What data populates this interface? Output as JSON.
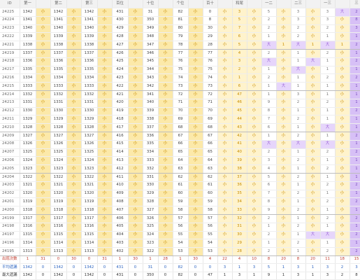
{
  "headers": [
    "ID",
    "第一",
    "",
    "第二",
    "",
    "第三",
    "",
    "百位",
    "",
    "十位",
    "",
    "个位",
    "",
    "百十",
    "",
    "和尾",
    "",
    "一二",
    "",
    "二三",
    "",
    "一三",
    "",
    "三"
  ],
  "rows": [
    {
      "id": "24225",
      "d": [
        "1342",
        "小",
        "1342",
        "小",
        "1342",
        "小",
        "431",
        "小",
        "31",
        "小",
        "82",
        "小",
        "0",
        "小",
        "3",
        "小",
        "5",
        "小",
        "3",
        "小",
        "3",
        "大",
        "2",
        "3"
      ]
    },
    {
      "id": "24224",
      "d": [
        "1341",
        "小",
        "1341",
        "小",
        "1341",
        "小",
        "430",
        "小",
        "350",
        "小",
        "81",
        "小",
        "8",
        "小",
        "5",
        "小",
        "2",
        "小",
        "3",
        "小",
        "3",
        "小",
        "8",
        "8"
      ]
    },
    {
      "id": "24223",
      "d": [
        "1340",
        "小",
        "1340",
        "小",
        "1340",
        "小",
        "429",
        "小",
        "349",
        "小",
        "80",
        "小",
        "30",
        "小",
        "7",
        "小",
        "2",
        "小",
        "2",
        "小",
        "2",
        "小",
        "3",
        "2"
      ]
    },
    {
      "id": "24222",
      "d": [
        "1339",
        "小",
        "1339",
        "小",
        "1339",
        "小",
        "428",
        "小",
        "348",
        "小",
        "79",
        "小",
        "29",
        "小",
        "6",
        "小",
        "1",
        "小",
        "2",
        "小",
        "1",
        "小",
        "1",
        "1"
      ]
    },
    {
      "id": "24221",
      "d": [
        "1338",
        "小",
        "1338",
        "小",
        "1338",
        "小",
        "427",
        "小",
        "347",
        "小",
        "78",
        "小",
        "28",
        "小",
        "5",
        "小",
        "大",
        "1",
        "大",
        "1",
        "大",
        "1",
        "2",
        "7"
      ]
    },
    {
      "id": "24219",
      "d": [
        "1337",
        "小",
        "1337",
        "小",
        "1337",
        "小",
        "426",
        "小",
        "346",
        "小",
        "77",
        "小",
        "77",
        "小",
        "4",
        "小",
        "2",
        "小",
        "1",
        "小",
        "2",
        "小",
        "1",
        "8"
      ]
    },
    {
      "id": "24218",
      "d": [
        "1336",
        "小",
        "1336",
        "小",
        "1336",
        "小",
        "425",
        "小",
        "345",
        "小",
        "76",
        "小",
        "76",
        "小",
        "3",
        "小",
        "大",
        "小",
        "1",
        "大",
        "1",
        "小",
        "2",
        "5"
      ]
    },
    {
      "id": "24217",
      "d": [
        "1335",
        "小",
        "1335",
        "小",
        "1335",
        "小",
        "424",
        "小",
        "344",
        "小",
        "75",
        "小",
        "75",
        "小",
        "2",
        "小",
        "1",
        "小",
        "大",
        "小",
        "1",
        "小",
        "1",
        "1"
      ]
    },
    {
      "id": "24216",
      "d": [
        "1334",
        "小",
        "1334",
        "小",
        "1334",
        "小",
        "423",
        "小",
        "343",
        "小",
        "74",
        "小",
        "74",
        "小",
        "1",
        "小",
        "2",
        "小",
        "1",
        "小",
        "2",
        "小",
        "2",
        "2"
      ]
    },
    {
      "id": "24215",
      "d": [
        "1333",
        "小",
        "1333",
        "小",
        "1333",
        "小",
        "422",
        "小",
        "342",
        "小",
        "73",
        "小",
        "73",
        "小",
        "6",
        "小",
        "1",
        "大",
        "1",
        "小",
        "1",
        "小",
        "1",
        "1"
      ]
    },
    {
      "id": "24214",
      "d": [
        "1332",
        "小",
        "1332",
        "小",
        "1332",
        "小",
        "421",
        "小",
        "341",
        "小",
        "72",
        "小",
        "72",
        "小",
        "47",
        "小",
        "1",
        "小",
        "3",
        "小",
        "1",
        "小",
        "1",
        "1"
      ]
    },
    {
      "id": "24213",
      "d": [
        "1331",
        "小",
        "1331",
        "小",
        "1331",
        "小",
        "420",
        "小",
        "340",
        "小",
        "71",
        "小",
        "71",
        "小",
        "46",
        "小",
        "9",
        "小",
        "2",
        "小",
        "2",
        "小",
        "1",
        "8"
      ]
    },
    {
      "id": "24212",
      "d": [
        "1330",
        "小",
        "1330",
        "小",
        "1330",
        "小",
        "419",
        "小",
        "339",
        "小",
        "70",
        "小",
        "70",
        "小",
        "45",
        "小",
        "8",
        "小",
        "1",
        "小",
        "1",
        "小",
        "2",
        "2"
      ]
    },
    {
      "id": "24211",
      "d": [
        "1329",
        "小",
        "1329",
        "小",
        "1329",
        "小",
        "418",
        "小",
        "338",
        "小",
        "69",
        "小",
        "69",
        "小",
        "44",
        "小",
        "7",
        "小",
        "2",
        "小",
        "1",
        "小",
        "1",
        "1"
      ]
    },
    {
      "id": "24210",
      "d": [
        "1328",
        "小",
        "1328",
        "小",
        "1328",
        "小",
        "417",
        "小",
        "337",
        "小",
        "68",
        "小",
        "68",
        "小",
        "43",
        "小",
        "6",
        "小",
        "1",
        "小",
        "大",
        "小",
        "1",
        "1"
      ]
    },
    {
      "id": "24209",
      "d": [
        "1327",
        "小",
        "1327",
        "小",
        "1327",
        "小",
        "416",
        "小",
        "336",
        "小",
        "67",
        "小",
        "67",
        "小",
        "42",
        "小",
        "1",
        "小",
        "2",
        "小",
        "1",
        "小",
        "2",
        "7"
      ]
    },
    {
      "id": "24208",
      "d": [
        "1326",
        "小",
        "1326",
        "小",
        "1326",
        "小",
        "415",
        "小",
        "335",
        "小",
        "66",
        "小",
        "66",
        "小",
        "41",
        "小",
        "大",
        "小",
        "大",
        "小",
        "大",
        "小",
        "1",
        "1"
      ]
    },
    {
      "id": "24207",
      "d": [
        "1325",
        "小",
        "1325",
        "小",
        "1325",
        "小",
        "414",
        "小",
        "334",
        "小",
        "65",
        "小",
        "65",
        "小",
        "40",
        "小",
        "2",
        "小",
        "1",
        "小",
        "2",
        "小",
        "2",
        "3"
      ]
    },
    {
      "id": "24206",
      "d": [
        "1324",
        "小",
        "1324",
        "小",
        "1324",
        "小",
        "413",
        "小",
        "333",
        "小",
        "64",
        "小",
        "64",
        "小",
        "39",
        "小",
        "3",
        "小",
        "2",
        "小",
        "1",
        "小",
        "1",
        "1"
      ]
    },
    {
      "id": "24205",
      "d": [
        "1323",
        "小",
        "1323",
        "小",
        "1323",
        "小",
        "412",
        "小",
        "332",
        "小",
        "63",
        "小",
        "63",
        "小",
        "38",
        "小",
        "4",
        "小",
        "1",
        "小",
        "2",
        "小",
        "1",
        "1"
      ]
    },
    {
      "id": "24204",
      "d": [
        "1322",
        "小",
        "1322",
        "小",
        "1322",
        "小",
        "411",
        "小",
        "331",
        "小",
        "62",
        "小",
        "62",
        "小",
        "37",
        "小",
        "5",
        "小",
        "2",
        "小",
        "1",
        "小",
        "1",
        "8"
      ]
    },
    {
      "id": "24203",
      "d": [
        "1321",
        "小",
        "1321",
        "小",
        "1321",
        "小",
        "410",
        "小",
        "330",
        "小",
        "61",
        "小",
        "61",
        "小",
        "36",
        "小",
        "6",
        "小",
        "1",
        "小",
        "2",
        "小",
        "2",
        "2"
      ]
    },
    {
      "id": "24202",
      "d": [
        "1320",
        "小",
        "1320",
        "小",
        "1320",
        "小",
        "409",
        "小",
        "329",
        "小",
        "60",
        "小",
        "60",
        "小",
        "35",
        "小",
        "7",
        "小",
        "2",
        "小",
        "1",
        "小",
        "1",
        "1"
      ]
    },
    {
      "id": "24201",
      "d": [
        "1319",
        "小",
        "1319",
        "小",
        "1319",
        "小",
        "408",
        "小",
        "328",
        "小",
        "59",
        "小",
        "59",
        "小",
        "34",
        "小",
        "8",
        "小",
        "1",
        "小",
        "2",
        "小",
        "2",
        "2"
      ]
    },
    {
      "id": "24200",
      "d": [
        "1318",
        "小",
        "1318",
        "小",
        "1318",
        "小",
        "407",
        "小",
        "327",
        "小",
        "58",
        "小",
        "58",
        "小",
        "33",
        "小",
        "9",
        "小",
        "2",
        "小",
        "1",
        "小",
        "1",
        "1"
      ]
    },
    {
      "id": "24199",
      "d": [
        "1317",
        "小",
        "1317",
        "小",
        "1317",
        "小",
        "406",
        "小",
        "326",
        "小",
        "57",
        "小",
        "57",
        "小",
        "32",
        "小",
        "2",
        "小",
        "1",
        "小",
        "2",
        "小",
        "2",
        "2"
      ]
    },
    {
      "id": "24198",
      "d": [
        "1316",
        "小",
        "1316",
        "小",
        "1316",
        "小",
        "405",
        "小",
        "325",
        "小",
        "56",
        "小",
        "56",
        "小",
        "31",
        "小",
        "1",
        "小",
        "2",
        "小",
        "1",
        "小",
        "1",
        "7"
      ]
    },
    {
      "id": "24197",
      "d": [
        "1315",
        "小",
        "1315",
        "小",
        "1315",
        "小",
        "404",
        "小",
        "324",
        "小",
        "55",
        "小",
        "55",
        "小",
        "30",
        "小",
        "2",
        "小",
        "1",
        "大",
        "大",
        "小",
        "2",
        "2"
      ]
    },
    {
      "id": "24196",
      "d": [
        "1314",
        "小",
        "1314",
        "小",
        "1314",
        "小",
        "403",
        "小",
        "323",
        "小",
        "54",
        "小",
        "54",
        "小",
        "29",
        "小",
        "1",
        "小",
        "2",
        "小",
        "1",
        "小",
        "1",
        "1"
      ]
    },
    {
      "id": "24195",
      "d": [
        "1313",
        "小",
        "1313",
        "小",
        "1313",
        "小",
        "402",
        "小",
        "322",
        "小",
        "53",
        "小",
        "53",
        "小",
        "28",
        "小",
        "2",
        "小",
        "1",
        "小",
        "2",
        "小",
        "2",
        "2"
      ]
    }
  ],
  "footer": [
    {
      "id": "出现次数",
      "cls": "f1",
      "d": [
        "1",
        "31",
        "0",
        "30",
        "0",
        "31",
        "1",
        "30",
        "1",
        "28",
        "1",
        "30",
        "4",
        "22",
        "4",
        "10",
        "8",
        "20",
        "8",
        "20",
        "11",
        "18",
        "15",
        "16"
      ]
    },
    {
      "id": "平均遗漏",
      "cls": "f2",
      "d": [
        "1342",
        "0",
        "1342",
        "0",
        "1342",
        "0",
        "431",
        "0",
        "31",
        "0",
        "82",
        "0",
        "0",
        "3",
        "1",
        "3",
        "5",
        "1",
        "3",
        "1",
        "3",
        "2",
        "3",
        "2"
      ]
    },
    {
      "id": "最大遗漏",
      "cls": "f3",
      "d": [
        "1342",
        "0",
        "1342",
        "0",
        "1342",
        "0",
        "431",
        "0",
        "350",
        "0",
        "82",
        "0",
        "47",
        "1",
        "3",
        "1",
        "9",
        "1",
        "3",
        "1",
        "3",
        "2",
        "8",
        "8"
      ]
    },
    {
      "id": "最大连出",
      "cls": "f3",
      "d": [
        "0",
        "30",
        "0",
        "30",
        "0",
        "30",
        "0",
        "30",
        "0",
        "30",
        "0",
        "30",
        "3",
        "30",
        "3",
        "5",
        "4",
        "7",
        "4",
        "6",
        "4",
        "6",
        "5",
        "5"
      ]
    }
  ],
  "colors": {
    "yellow": "#fce9a9",
    "purple": "#e6d5fb",
    "accent": "#c78c00"
  }
}
